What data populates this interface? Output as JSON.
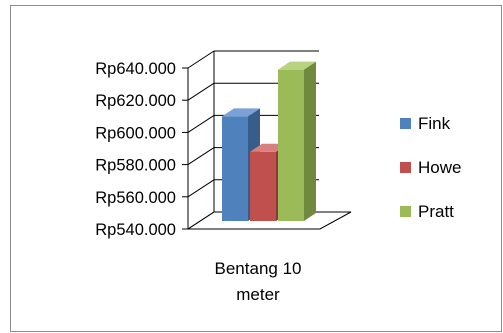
{
  "chart_data": {
    "type": "bar",
    "style": "3d-clustered-column",
    "title": "",
    "xlabel": "",
    "ylabel": "",
    "categories": [
      [
        "Bentang 10",
        "meter"
      ]
    ],
    "series": [
      {
        "name": "Fink",
        "values": [
          605000
        ],
        "color": "#4f81bd",
        "shade": "#385d8a",
        "top": "#7ba1d6"
      },
      {
        "name": "Howe",
        "values": [
          583000
        ],
        "color": "#c0504d",
        "shade": "#8c3836",
        "top": "#d7807e"
      },
      {
        "name": "Pratt",
        "values": [
          634000
        ],
        "color": "#9bbb59",
        "shade": "#71893f",
        "top": "#b9d27f"
      }
    ],
    "y_ticks": [
      "Rp540.000",
      "Rp560.000",
      "Rp580.000",
      "Rp600.000",
      "Rp620.000",
      "Rp640.000"
    ],
    "ylim": [
      540000,
      640000
    ],
    "legend_position": "right",
    "gridlines": true
  }
}
